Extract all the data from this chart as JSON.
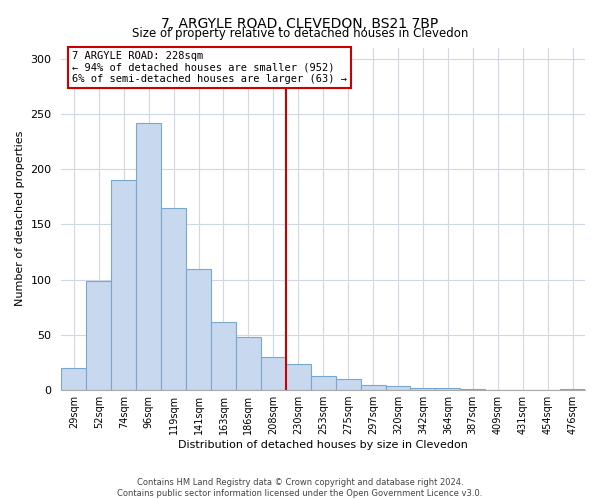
{
  "title": "7, ARGYLE ROAD, CLEVEDON, BS21 7BP",
  "subtitle": "Size of property relative to detached houses in Clevedon",
  "xlabel": "Distribution of detached houses by size in Clevedon",
  "ylabel": "Number of detached properties",
  "bar_labels": [
    "29sqm",
    "52sqm",
    "74sqm",
    "96sqm",
    "119sqm",
    "141sqm",
    "163sqm",
    "186sqm",
    "208sqm",
    "230sqm",
    "253sqm",
    "275sqm",
    "297sqm",
    "320sqm",
    "342sqm",
    "364sqm",
    "387sqm",
    "409sqm",
    "431sqm",
    "454sqm",
    "476sqm"
  ],
  "bar_heights": [
    20,
    99,
    190,
    242,
    165,
    110,
    62,
    48,
    30,
    24,
    13,
    10,
    5,
    4,
    2,
    2,
    1,
    0,
    0,
    0,
    1
  ],
  "bar_color": "#c8d8ee",
  "bar_edge_color": "#7aa8cc",
  "annotation_title": "7 ARGYLE ROAD: 228sqm",
  "annotation_line1": "← 94% of detached houses are smaller (952)",
  "annotation_line2": "6% of semi-detached houses are larger (63) →",
  "annotation_box_color": "#ffffff",
  "annotation_box_edge": "#cc0000",
  "vline_color": "#cc0000",
  "vline_x_index": 9,
  "ylim": [
    0,
    310
  ],
  "yticks": [
    0,
    50,
    100,
    150,
    200,
    250,
    300
  ],
  "footer_line1": "Contains HM Land Registry data © Crown copyright and database right 2024.",
  "footer_line2": "Contains public sector information licensed under the Open Government Licence v3.0.",
  "background_color": "#ffffff",
  "plot_bg_color": "#ffffff",
  "grid_color": "#d0d8e8"
}
